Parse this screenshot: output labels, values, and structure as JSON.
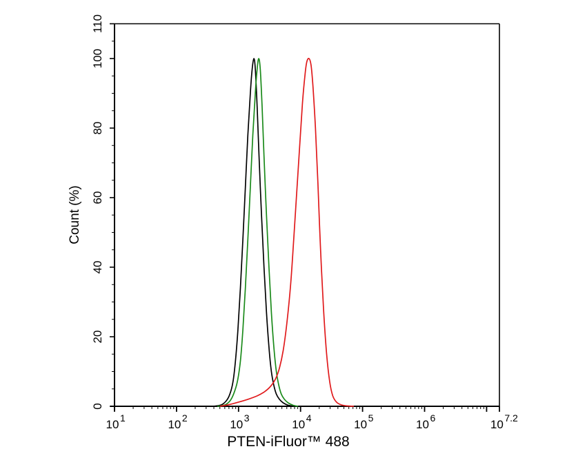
{
  "chart_data": {
    "type": "line",
    "title": "",
    "xlabel": "PTEN-iFluor™ 488",
    "ylabel": "Count  (%)",
    "xscale": "log10",
    "xlim_log10": [
      1,
      7.2
    ],
    "ylim": [
      0,
      110
    ],
    "grid": false,
    "legend": null,
    "x_ticks": [
      {
        "pos": 1,
        "base": "10",
        "exp": "1"
      },
      {
        "pos": 2,
        "base": "10",
        "exp": "2"
      },
      {
        "pos": 3,
        "base": "10",
        "exp": "3"
      },
      {
        "pos": 4,
        "base": "10",
        "exp": "4"
      },
      {
        "pos": 5,
        "base": "10",
        "exp": "5"
      },
      {
        "pos": 6,
        "base": "10",
        "exp": "6"
      },
      {
        "pos": 7.2,
        "base": "10",
        "exp": "7.2"
      }
    ],
    "y_ticks": [
      0,
      20,
      40,
      60,
      80,
      100,
      110
    ],
    "series": [
      {
        "name": "black",
        "color": "#000000",
        "x_log10": [
          2.6,
          2.72,
          2.8,
          2.86,
          2.91,
          2.95,
          2.99,
          3.03,
          3.07,
          3.11,
          3.15,
          3.19,
          3.22,
          3.247,
          3.27,
          3.3,
          3.33,
          3.37,
          3.41,
          3.45,
          3.49,
          3.53,
          3.57,
          3.61,
          3.66,
          3.72,
          3.8,
          3.9
        ],
        "y": [
          0,
          0.4,
          1.5,
          3.5,
          7,
          13,
          22,
          34,
          48,
          63,
          78,
          90,
          97,
          100,
          97,
          86,
          72,
          55,
          40,
          27,
          17,
          10,
          6,
          3.5,
          2,
          1,
          0.3,
          0
        ]
      },
      {
        "name": "green",
        "color": "#1a8a1a",
        "x_log10": [
          2.66,
          2.78,
          2.86,
          2.92,
          2.98,
          3.03,
          3.07,
          3.11,
          3.15,
          3.19,
          3.23,
          3.27,
          3.3,
          3.325,
          3.35,
          3.38,
          3.41,
          3.45,
          3.49,
          3.53,
          3.57,
          3.61,
          3.65,
          3.69,
          3.74,
          3.8,
          3.88,
          3.96
        ],
        "y": [
          0,
          0.4,
          1.5,
          3.5,
          7,
          13,
          22,
          34,
          48,
          63,
          78,
          90,
          97,
          100,
          97,
          86,
          72,
          55,
          40,
          27,
          17,
          10,
          6,
          3.5,
          2,
          1,
          0.3,
          0
        ]
      },
      {
        "name": "red",
        "color": "#e0191b",
        "x_log10": [
          2.7,
          2.85,
          3.0,
          3.15,
          3.3,
          3.42,
          3.52,
          3.6,
          3.66,
          3.72,
          3.78,
          3.84,
          3.89,
          3.94,
          3.99,
          4.03,
          4.07,
          4.1,
          4.137,
          4.17,
          4.2,
          4.24,
          4.28,
          4.32,
          4.37,
          4.42,
          4.47,
          4.52,
          4.58,
          4.66,
          4.76,
          4.86
        ],
        "y": [
          0,
          0.5,
          1.2,
          2,
          3,
          4.2,
          5.8,
          8,
          11,
          16,
          24,
          35,
          48,
          62,
          76,
          87,
          95,
          99,
          100,
          98,
          92,
          80,
          64,
          46,
          28,
          15,
          7,
          3,
          1.2,
          0.4,
          0.1,
          0
        ]
      }
    ]
  }
}
